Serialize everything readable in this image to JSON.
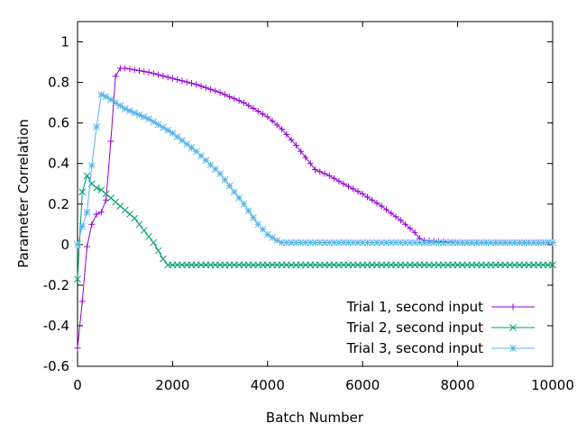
{
  "chart_data": {
    "type": "line",
    "title": "",
    "xlabel": "Batch Number",
    "ylabel": "Parameter Correlation",
    "xlim": [
      0,
      10000
    ],
    "ylim": [
      -0.6,
      1.1
    ],
    "x_ticks": [
      0,
      2000,
      4000,
      6000,
      8000,
      10000
    ],
    "x_tick_labels": [
      "0",
      "2000",
      "4000",
      "6000",
      "8000",
      "10000"
    ],
    "y_ticks": [
      -0.6,
      -0.4,
      -0.2,
      0,
      0.2,
      0.4,
      0.6,
      0.8,
      1
    ],
    "y_tick_labels": [
      "-0.6",
      "-0.4",
      "-0.2",
      "0",
      "0.2",
      "0.4",
      "0.6",
      "0.8",
      "1"
    ],
    "grid": false,
    "legend_position": "bottom-right",
    "series": [
      {
        "name": "Trial 1, second input",
        "color": "#9400d3",
        "marker": "plus",
        "x": [
          0,
          100,
          200,
          300,
          400,
          500,
          600,
          700,
          800,
          900,
          1000,
          1500,
          2000,
          2500,
          3000,
          3500,
          4000,
          4300,
          4600,
          4800,
          5000,
          5300,
          5600,
          6000,
          6400,
          6800,
          7100,
          7200,
          7300,
          8000,
          9000,
          10000
        ],
        "y": [
          -0.51,
          -0.28,
          -0.01,
          0.1,
          0.15,
          0.16,
          0.22,
          0.51,
          0.83,
          0.87,
          0.87,
          0.85,
          0.82,
          0.79,
          0.75,
          0.7,
          0.63,
          0.57,
          0.49,
          0.43,
          0.37,
          0.34,
          0.3,
          0.25,
          0.19,
          0.12,
          0.06,
          0.03,
          0.02,
          0.01,
          0.01,
          0.01
        ]
      },
      {
        "name": "Trial 2, second input",
        "color": "#009e73",
        "marker": "cross",
        "x": [
          0,
          100,
          200,
          300,
          400,
          500,
          600,
          700,
          800,
          900,
          1000,
          1100,
          1200,
          1300,
          1400,
          1500,
          1600,
          1700,
          1800,
          1900,
          2000,
          3000,
          4000,
          5000,
          6000,
          7000,
          8000,
          9000,
          10000
        ],
        "y": [
          -0.17,
          0.26,
          0.34,
          0.3,
          0.28,
          0.27,
          0.25,
          0.23,
          0.21,
          0.19,
          0.17,
          0.15,
          0.13,
          0.1,
          0.07,
          0.04,
          0.01,
          -0.03,
          -0.07,
          -0.1,
          -0.1,
          -0.1,
          -0.1,
          -0.1,
          -0.1,
          -0.1,
          -0.1,
          -0.1,
          -0.1
        ]
      },
      {
        "name": "Trial 3, second input",
        "color": "#56b4e9",
        "marker": "star",
        "x": [
          0,
          100,
          200,
          300,
          400,
          500,
          600,
          800,
          1000,
          1500,
          2000,
          2500,
          3000,
          3500,
          3800,
          4000,
          4200,
          4300,
          4500,
          5000,
          6000,
          7000,
          8000,
          9000,
          10000
        ],
        "y": [
          0.0,
          0.09,
          0.16,
          0.39,
          0.58,
          0.74,
          0.73,
          0.7,
          0.67,
          0.62,
          0.55,
          0.46,
          0.35,
          0.2,
          0.1,
          0.05,
          0.02,
          0.01,
          0.01,
          0.01,
          0.01,
          0.01,
          0.01,
          0.01,
          0.01
        ]
      }
    ]
  }
}
